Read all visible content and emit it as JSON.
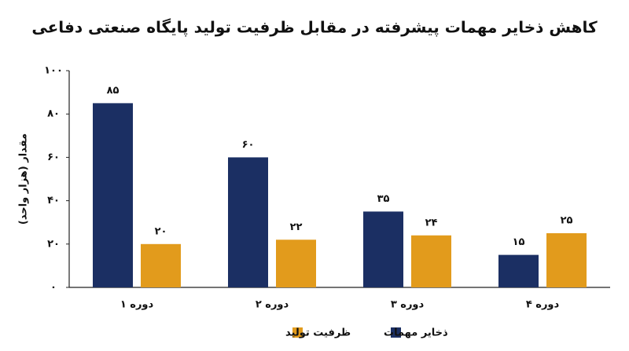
{
  "chart_data": {
    "type": "bar",
    "title": "کاهش ذخایر مهمات پیشرفته در مقابل ظرفیت تولید پایگاه صنعتی دفاعی",
    "y_label": "مقدار (هزار واحد)",
    "categories": [
      "دوره ۱",
      "دوره ۲",
      "دوره ۳",
      "دوره ۴"
    ],
    "series": [
      {
        "name": "ذخایر مهمات",
        "color": "#1b2f63",
        "values": [
          85,
          60,
          35,
          15
        ],
        "value_labels": [
          "۸۵",
          "۶۰",
          "۳۵",
          "۱۵"
        ]
      },
      {
        "name": "ظرفیت تولید",
        "color": "#e29b1c",
        "values": [
          20,
          22,
          24,
          25
        ],
        "value_labels": [
          "۲۰",
          "۲۲",
          "۲۴",
          "۲۵"
        ]
      }
    ],
    "ylim": [
      0,
      100
    ],
    "yticks": [
      {
        "value": 0,
        "label": "۰"
      },
      {
        "value": 20,
        "label": "۲۰"
      },
      {
        "value": 40,
        "label": "۴۰"
      },
      {
        "value": 60,
        "label": "۶۰"
      },
      {
        "value": 80,
        "label": "۸۰"
      },
      {
        "value": 100,
        "label": "۱۰۰"
      }
    ],
    "grid": false,
    "legend": "bottom"
  }
}
